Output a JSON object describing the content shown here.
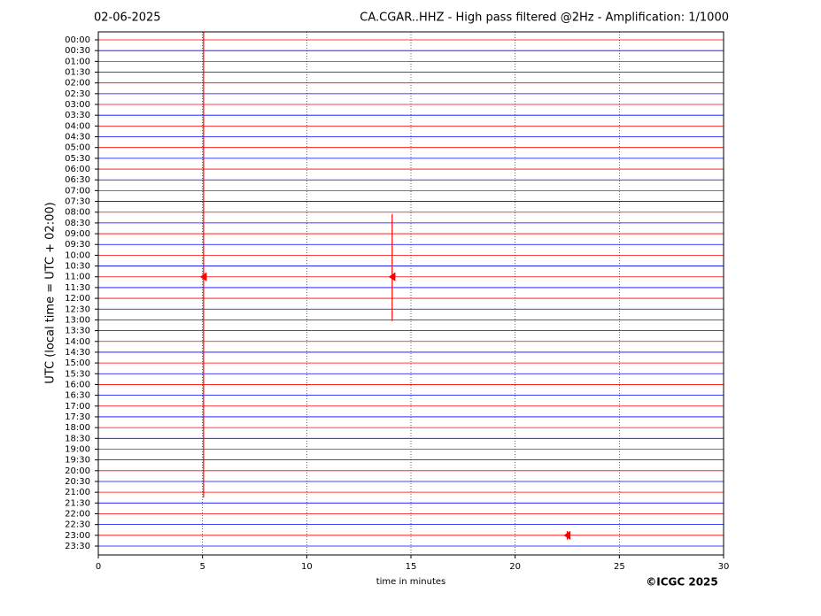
{
  "chart_data": {
    "type": "helicorder",
    "date": "02-06-2025",
    "title": "CA.CGAR..HHZ - High pass filtered @2Hz - Amplification: 1/1000",
    "y_label": "UTC (local time = UTC + 02:00)",
    "x_label": "time in minutes",
    "credit": "©ICGC 2025",
    "categories": [
      "00:00",
      "00:30",
      "01:00",
      "01:30",
      "02:00",
      "02:30",
      "03:00",
      "03:30",
      "04:00",
      "04:30",
      "05:00",
      "05:30",
      "06:00",
      "06:30",
      "07:00",
      "07:30",
      "08:00",
      "08:30",
      "09:00",
      "09:30",
      "10:00",
      "10:30",
      "11:00",
      "11:30",
      "12:00",
      "12:30",
      "13:00",
      "13:30",
      "14:00",
      "14:30",
      "15:00",
      "15:30",
      "16:00",
      "16:30",
      "17:00",
      "17:30",
      "18:00",
      "18:30",
      "19:00",
      "19:30",
      "20:00",
      "20:30",
      "21:00",
      "21:30",
      "22:00",
      "22:30",
      "23:00",
      "23:30"
    ],
    "colors": [
      "#ff0000",
      "#0000ff"
    ],
    "xlim": [
      0,
      30
    ],
    "xticks": [
      0,
      5,
      10,
      15,
      20,
      25,
      30
    ],
    "grid": true,
    "events": [
      {
        "row": 22,
        "minute": 5.05,
        "up": 23,
        "down": 20.5
      },
      {
        "row": 22,
        "minute": 14.1,
        "up": 5.8,
        "down": 4.1
      },
      {
        "row": 46,
        "minute": 22.5,
        "up": 0.4,
        "down": 0.4
      }
    ]
  }
}
